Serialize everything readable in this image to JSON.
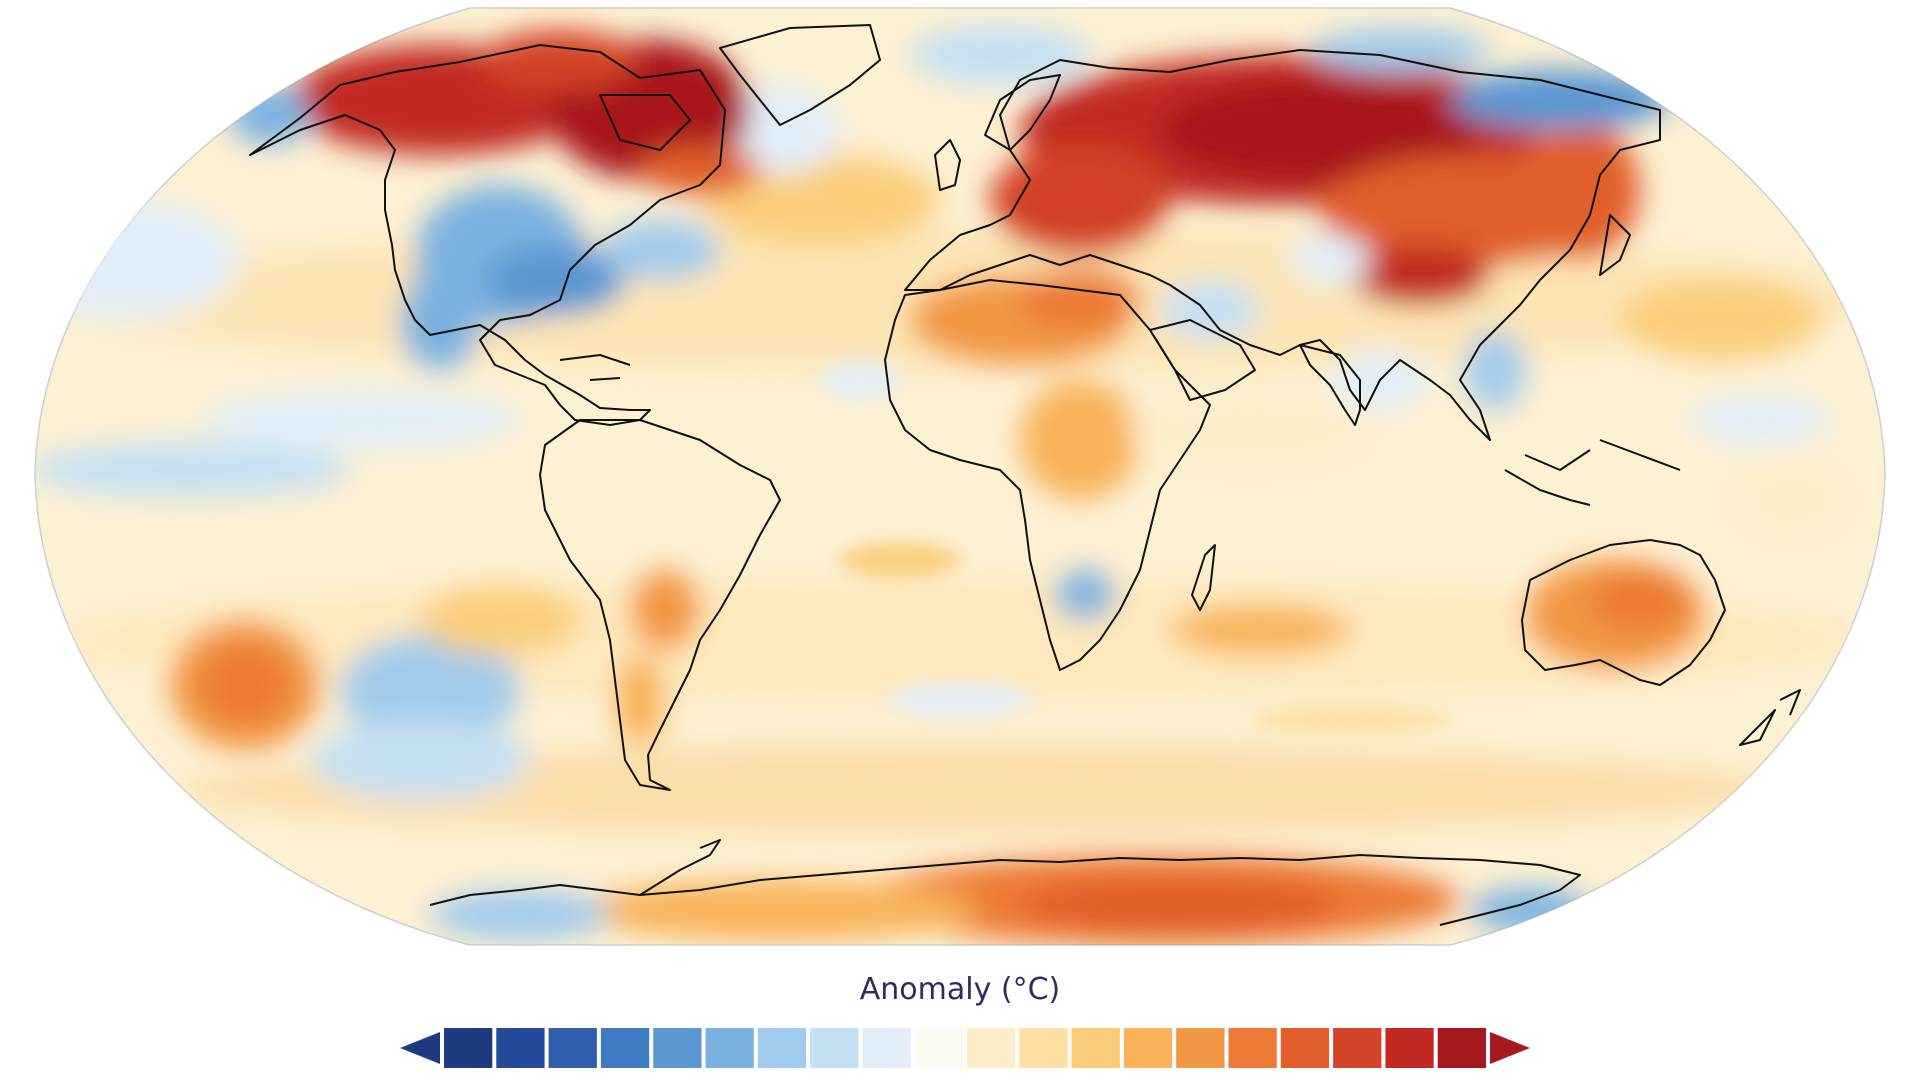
{
  "colorbar": {
    "title": "Anomaly (°C)",
    "colors": [
      "#1f3b80",
      "#244b98",
      "#2f5fae",
      "#3f7cc4",
      "#5b97d2",
      "#7cb2e0",
      "#a2cbeb",
      "#c6e0f3",
      "#e2eef8",
      "#fbfbf0",
      "#fdeecb",
      "#fde0a2",
      "#fbcd7a",
      "#f8b35a",
      "#f29743",
      "#ec7a34",
      "#e15e2b",
      "#d34326",
      "#c12a22",
      "#a8191d"
    ],
    "under_color": "#1f3b80",
    "over_color": "#a8191d"
  },
  "map": {
    "projection": "robinson",
    "ocean_base": "#fdf1d3",
    "coastline_color": "#111111"
  }
}
